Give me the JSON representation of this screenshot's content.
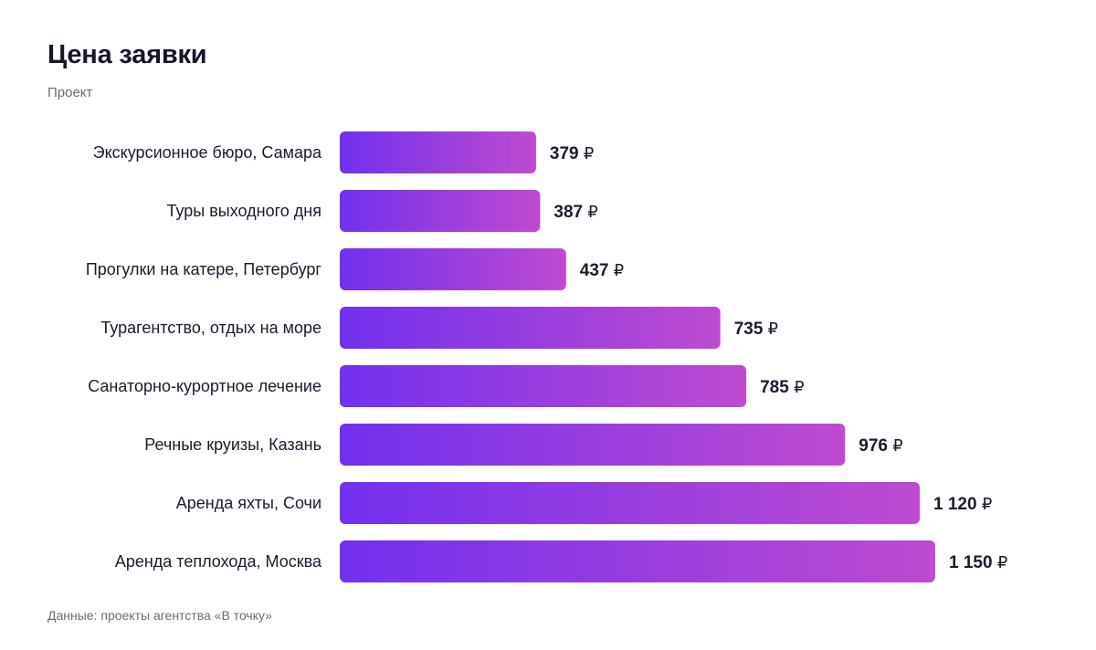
{
  "header": {
    "title": "Цена заявки",
    "subtitle": "Проект"
  },
  "footer": {
    "source": "Данные: проекты агентства «В точку»"
  },
  "colors": {
    "bar_gradient_start": "#7230ee",
    "bar_gradient_end": "#be4bd0",
    "text": "#1c1b2e",
    "muted": "#6b6c78"
  },
  "chart_data": {
    "type": "bar",
    "orientation": "horizontal",
    "title": "Цена заявки",
    "subtitle": "Проект",
    "categories": [
      "Экскурсионное бюро, Самара",
      "Туры выходного дня",
      "Прогулки на катере, Петербург",
      "Турагентство, отдых на море",
      "Санаторно-курортное лечение",
      "Речные круизы, Казань",
      "Аренда яхты, Сочи",
      "Аренда теплохода, Москва"
    ],
    "values": [
      379,
      387,
      437,
      735,
      785,
      976,
      1120,
      1150
    ],
    "value_labels": [
      "379",
      "387",
      "437",
      "735",
      "785",
      "976",
      "1 120",
      "1 150"
    ],
    "unit": "₽",
    "xlim": [
      0,
      1150
    ],
    "grid": false,
    "legend": "none"
  }
}
